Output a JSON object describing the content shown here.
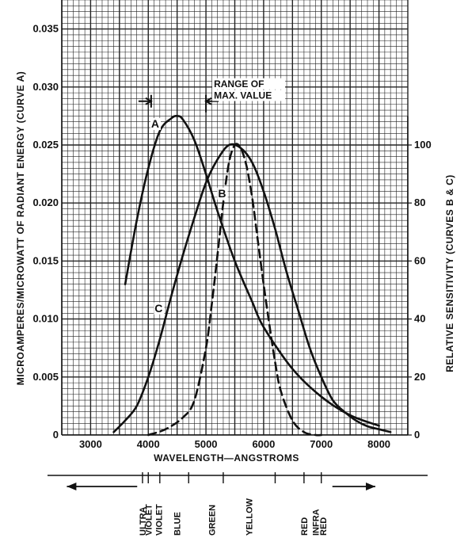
{
  "chart_data": {
    "type": "line",
    "xlabel": "WAVELENGTH—ANGSTROMS",
    "ylabel_left": "MICROAMPERES/MICROWATT OF RADIANT ENERGY (CURVE A)",
    "ylabel_right": "RELATIVE SENSITIVITY (CURVES B & C)",
    "xlim": [
      2500,
      8500
    ],
    "ylim_left": [
      0,
      0.0375
    ],
    "ylim_right": [
      0,
      150
    ],
    "x_ticks": [
      3000,
      4000,
      5000,
      6000,
      7000,
      8000
    ],
    "x_tick_labels": [
      "3000",
      "4000",
      "5000",
      "6000",
      "7000",
      "8000"
    ],
    "y_ticks_left": [
      0,
      0.005,
      0.01,
      0.015,
      0.02,
      0.025,
      0.03,
      0.035
    ],
    "y_tick_labels_left": [
      "0",
      "0.005",
      "0.010",
      "0.015",
      "0.020",
      "0.025",
      "0.030",
      "0.035"
    ],
    "y_ticks_right": [
      0,
      20,
      40,
      60,
      80,
      100
    ],
    "y_tick_labels_right": [
      "0",
      "20",
      "40",
      "60",
      "80",
      "100"
    ],
    "grid": true,
    "series": [
      {
        "name": "A",
        "axis": "left",
        "style": "solid",
        "x": [
          3600,
          3800,
          4000,
          4200,
          4400,
          4500,
          4600,
          4800,
          5000,
          5200,
          5500,
          5800,
          6000,
          6500,
          7000,
          7500,
          8000
        ],
        "y": [
          0.013,
          0.0185,
          0.023,
          0.0262,
          0.0273,
          0.0275,
          0.0272,
          0.0254,
          0.0225,
          0.0193,
          0.015,
          0.0115,
          0.0093,
          0.0057,
          0.0033,
          0.0017,
          0.0008
        ]
      },
      {
        "name": "B",
        "axis": "right",
        "style": "dashed",
        "x": [
          4000,
          4300,
          4600,
          4800,
          5000,
          5100,
          5200,
          5300,
          5400,
          5500,
          5600,
          5700,
          5800,
          5900,
          6000,
          6100,
          6200,
          6300,
          6500,
          6700,
          6900,
          7000
        ],
        "y": [
          0,
          2,
          6,
          12,
          30,
          45,
          62,
          80,
          94,
          100,
          99,
          93,
          82,
          67,
          52,
          38,
          25,
          15,
          5,
          1,
          0,
          0
        ]
      },
      {
        "name": "C",
        "axis": "right",
        "style": "solid",
        "x": [
          3400,
          3600,
          3800,
          4000,
          4200,
          4400,
          4600,
          4800,
          5000,
          5200,
          5400,
          5600,
          5800,
          6000,
          6200,
          6400,
          6600,
          6800,
          7000,
          7200,
          7400,
          7600,
          7800,
          8000,
          8200
        ],
        "y": [
          1,
          5,
          10,
          20,
          33,
          48,
          62,
          75,
          87,
          95,
          100,
          99,
          94,
          84,
          71,
          56,
          43,
          30,
          20,
          12,
          8,
          5,
          3,
          2,
          1
        ]
      }
    ],
    "annotations": [
      {
        "text": "RANGE OF",
        "x": 5000,
        "y": 0.03
      },
      {
        "text": "MAX. VALUE",
        "x": 5000,
        "y": 0.029
      }
    ],
    "range_of_max": {
      "start": 4050,
      "end": 5000,
      "y": 0.0285
    },
    "curve_labels": [
      {
        "text": "A",
        "x": 4120,
        "y": 0.0265
      },
      {
        "text": "B",
        "x": 5280,
        "y": 0.0205
      },
      {
        "text": "C",
        "x": 4180,
        "y": 0.0106
      }
    ],
    "spectrum_bands": {
      "left_arrow": {
        "from": 4000,
        "to": 3000
      },
      "right_arrow": {
        "from": 7000,
        "to": 7800
      },
      "ticks": [
        3900,
        4000,
        4200,
        4700,
        5300,
        6200,
        6700,
        7000
      ],
      "labels": [
        {
          "text": "ULTRA",
          "x": 3900
        },
        {
          "text": "VIOLET",
          "x": 4000
        },
        {
          "text": "VIOLET",
          "x": 4180
        },
        {
          "text": "BLUE",
          "x": 4500
        },
        {
          "text": "GREEN",
          "x": 5100
        },
        {
          "text": "YELLOW",
          "x": 5750
        },
        {
          "text": "RED",
          "x": 6700
        },
        {
          "text": "INFRA",
          "x": 6900
        },
        {
          "text": "RED",
          "x": 7030
        }
      ]
    }
  }
}
